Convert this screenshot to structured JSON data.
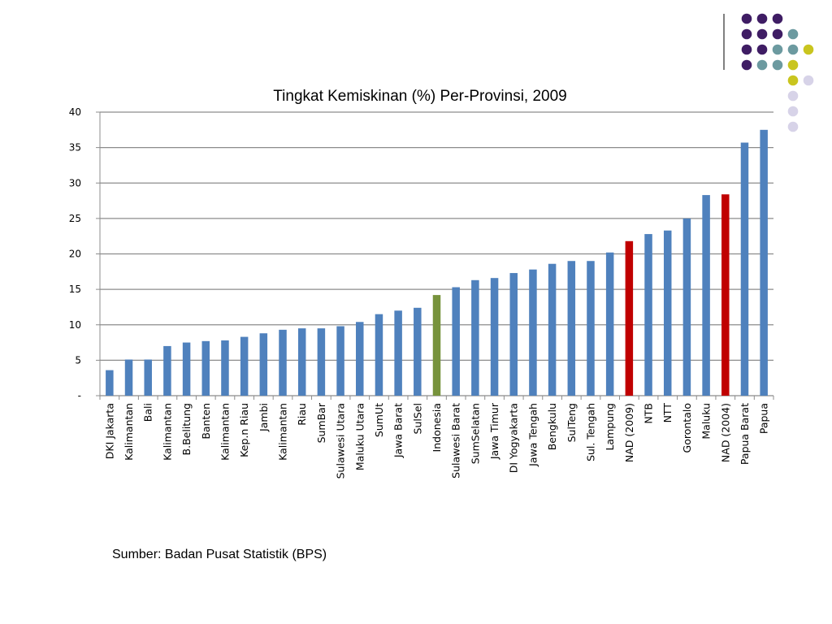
{
  "chart_data": {
    "type": "bar",
    "title": "Tingkat Kemiskinan (%) Per-Provinsi, 2009",
    "xlabel": "",
    "ylabel": "",
    "ylim": [
      0,
      40
    ],
    "yticks": [
      0,
      5,
      10,
      15,
      20,
      25,
      30,
      35,
      40
    ],
    "ytick_labels": [
      "-",
      "5",
      "10",
      "15",
      "20",
      "25",
      "30",
      "35",
      "40"
    ],
    "grid": true,
    "categories": [
      "DKI Jakarta",
      "Kalimantan",
      "Bali",
      "Kalimantan",
      "B.Belitung",
      "Banten",
      "Kalimantan",
      "Kep.n Riau",
      "Jambi",
      "Kalimantan",
      "Riau",
      "SumBar",
      "Sulawesi Utara",
      "Maluku Utara",
      "SumUt",
      "Jawa Barat",
      "SulSel",
      "Indonesia",
      "Sulawesi Barat",
      "SumSelatan",
      "Jawa Timur",
      "DI Yogyakarta",
      "Jawa Tengah",
      "Bengkulu",
      "SulTeng",
      "Sul. Tengah",
      "Lampung",
      "NAD (2009)",
      "NTB",
      "NTT",
      "Gorontalo",
      "Maluku",
      "NAD (2004)",
      "Papua Barat",
      "Papua"
    ],
    "values": [
      3.6,
      5.1,
      5.1,
      7.0,
      7.5,
      7.7,
      7.8,
      8.3,
      8.8,
      9.3,
      9.5,
      9.5,
      9.8,
      10.4,
      11.5,
      12.0,
      12.4,
      14.2,
      15.3,
      16.3,
      16.6,
      17.3,
      17.8,
      18.6,
      19.0,
      19.0,
      20.2,
      21.8,
      22.8,
      23.3,
      25.0,
      28.3,
      28.4,
      35.7,
      37.5
    ],
    "bar_colors": [
      "#4f81bd",
      "#4f81bd",
      "#4f81bd",
      "#4f81bd",
      "#4f81bd",
      "#4f81bd",
      "#4f81bd",
      "#4f81bd",
      "#4f81bd",
      "#4f81bd",
      "#4f81bd",
      "#4f81bd",
      "#4f81bd",
      "#4f81bd",
      "#4f81bd",
      "#4f81bd",
      "#4f81bd",
      "#77933c",
      "#4f81bd",
      "#4f81bd",
      "#4f81bd",
      "#4f81bd",
      "#4f81bd",
      "#4f81bd",
      "#4f81bd",
      "#4f81bd",
      "#4f81bd",
      "#c00000",
      "#4f81bd",
      "#4f81bd",
      "#4f81bd",
      "#4f81bd",
      "#c00000",
      "#4f81bd",
      "#4f81bd"
    ]
  },
  "source": "Sumber: Badan Pusat Statistik (BPS)",
  "decor": {
    "dot_colors": [
      "#3f1d64",
      "#6c9aa0",
      "#c9c51f",
      "#d7d3e8"
    ],
    "rule_color": "#555555"
  }
}
